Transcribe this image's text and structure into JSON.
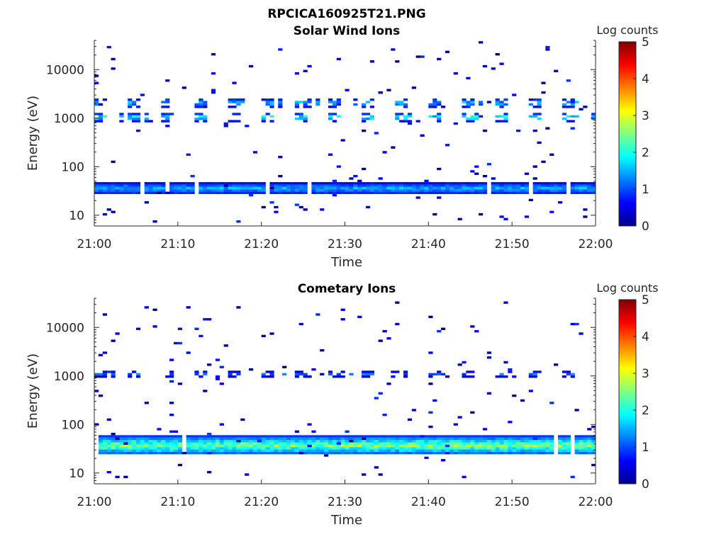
{
  "figure": {
    "title": "RPCICA160925T21.PNG"
  },
  "chart_data": [
    {
      "type": "heatmap",
      "title": "Solar Wind Ions",
      "xlabel": "Time",
      "ylabel": "Energy (eV)",
      "x_ticks": [
        "21:00",
        "21:10",
        "21:20",
        "21:30",
        "21:40",
        "21:50",
        "22:00"
      ],
      "y_ticks": [
        "10",
        "100",
        "1000",
        "10000"
      ],
      "y_scale": "log",
      "ylim": [
        6,
        40000
      ],
      "xlim": [
        "21:00",
        "22:00"
      ],
      "colorbar": {
        "label": "Log counts",
        "range": [
          0,
          5
        ],
        "ticks": [
          "0",
          "1",
          "2",
          "3",
          "4",
          "5"
        ]
      },
      "bands": [
        {
          "name": "low-energy band",
          "energy_range_eV": [
            25,
            45
          ],
          "log_counts_range": [
            0.5,
            1.8
          ]
        },
        {
          "name": "~1 keV band",
          "energy_range_eV": [
            800,
            1200
          ],
          "log_counts_range": [
            0.5,
            2.6
          ]
        },
        {
          "name": "~2 keV band",
          "energy_range_eV": [
            1500,
            2500
          ],
          "log_counts_range": [
            0.3,
            2.0
          ]
        }
      ]
    },
    {
      "type": "heatmap",
      "title": "Cometary Ions",
      "xlabel": "Time",
      "ylabel": "Energy (eV)",
      "x_ticks": [
        "21:00",
        "21:10",
        "21:20",
        "21:30",
        "21:40",
        "21:50",
        "22:00"
      ],
      "y_ticks": [
        "10",
        "100",
        "1000",
        "10000"
      ],
      "y_scale": "log",
      "ylim": [
        6,
        40000
      ],
      "xlim": [
        "21:00",
        "22:00"
      ],
      "colorbar": {
        "label": "Log counts",
        "range": [
          0,
          5
        ],
        "ticks": [
          "0",
          "1",
          "2",
          "3",
          "4",
          "5"
        ]
      },
      "bands": [
        {
          "name": "low-energy band",
          "energy_range_eV": [
            22,
            55
          ],
          "log_counts_range": [
            0.8,
            3.0
          ]
        },
        {
          "name": "~1 keV band",
          "energy_range_eV": [
            900,
            1200
          ],
          "log_counts_range": [
            0.3,
            1.5
          ]
        }
      ]
    }
  ]
}
